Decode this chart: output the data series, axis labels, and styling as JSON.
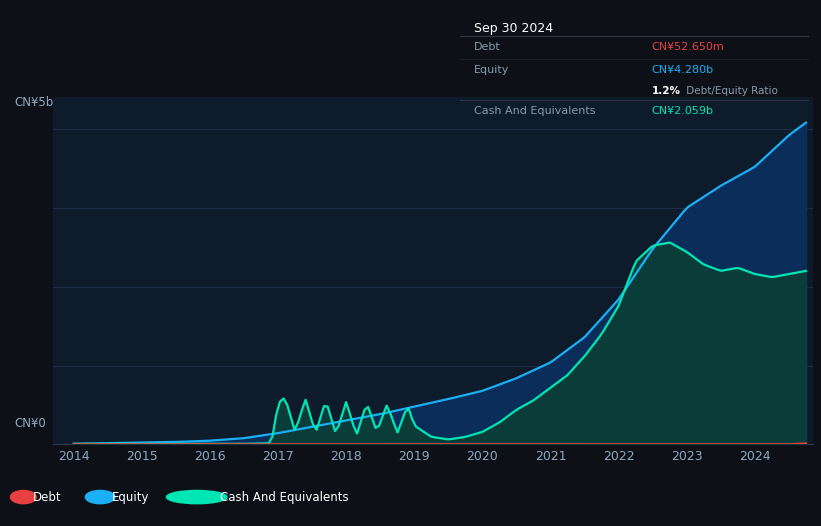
{
  "bg_color": "#0d1117",
  "plot_bg_color": "#0d1b2a",
  "grid_color": "#1e3048",
  "ylabel_top": "CN¥5b",
  "ylabel_bot": "CN¥0",
  "x_ticks": [
    2014,
    2015,
    2016,
    2017,
    2018,
    2019,
    2020,
    2021,
    2022,
    2023,
    2024
  ],
  "x_tick_labels": [
    "2014",
    "2015",
    "2016",
    "2017",
    "2018",
    "2019",
    "2020",
    "2021",
    "2022",
    "2023",
    "2024"
  ],
  "tooltip_date": "Sep 30 2024",
  "tooltip_debt_label": "Debt",
  "tooltip_debt_value": "CN¥52.650m",
  "tooltip_equity_label": "Equity",
  "tooltip_equity_value": "CN¥4.280b",
  "tooltip_ratio_bold": "1.2%",
  "tooltip_ratio_rest": " Debt/Equity Ratio",
  "tooltip_cash_label": "Cash And Equivalents",
  "tooltip_cash_value": "CN¥2.059b",
  "debt_color": "#e84040",
  "equity_color": "#1ab0f5",
  "cash_color": "#00e5b4",
  "equity_fill": "#0a2d5a",
  "cash_fill": "#0a3d3a",
  "legend_bg": "#111827",
  "legend_border": "#2d3d4d",
  "axis_text_color": "#8fa8c0",
  "tooltip_bg": "#0c0e14",
  "tooltip_border": "#2a3040",
  "tooltip_label_color": "#8899aa",
  "tooltip_title_color": "#ffffff",
  "ylim": [
    0,
    5.5
  ],
  "xlim_start": 2013.7,
  "xlim_end": 2024.85
}
